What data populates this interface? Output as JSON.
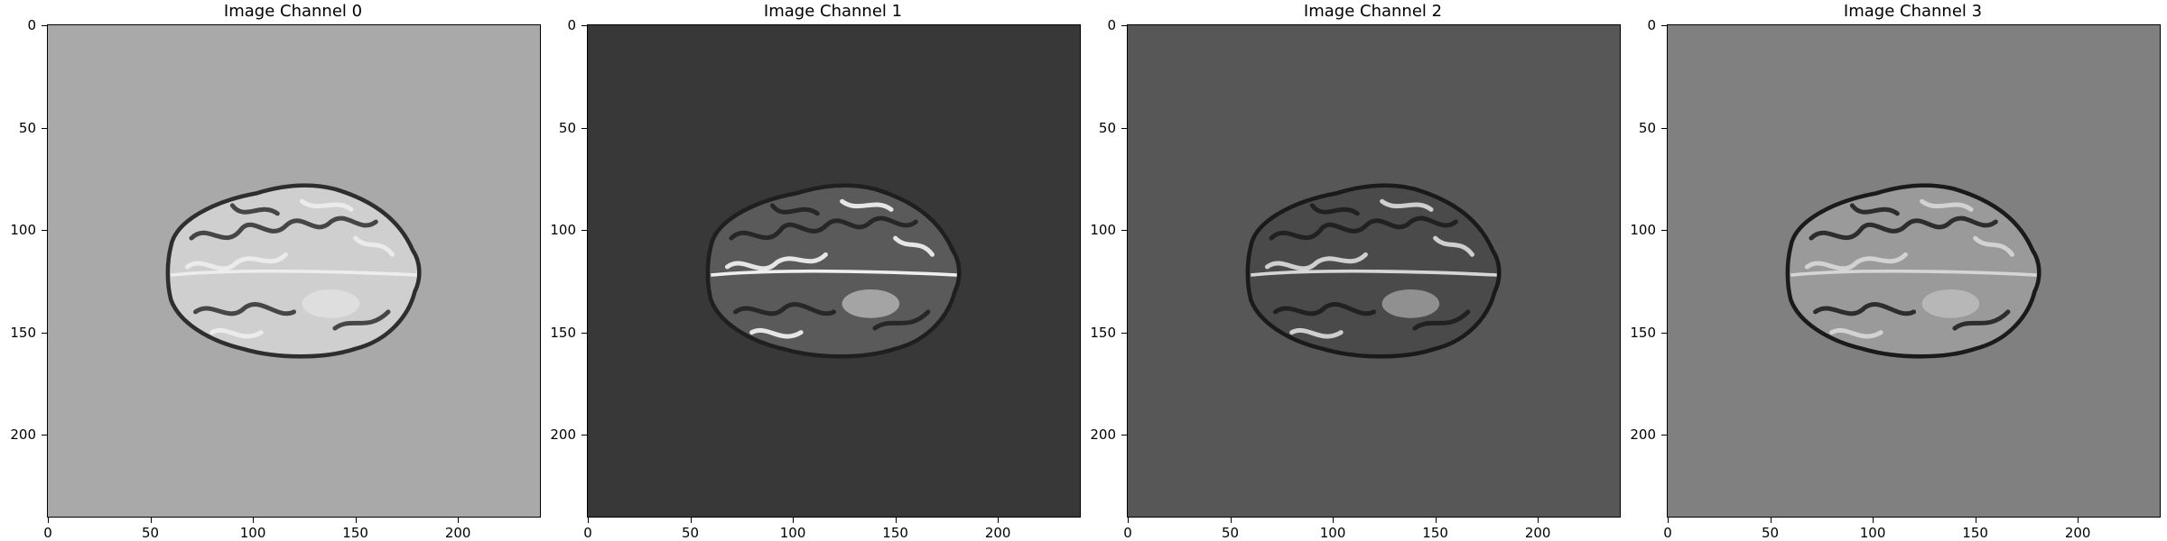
{
  "figure": {
    "colormap": "gray",
    "x_ticks": [
      "0",
      "50",
      "100",
      "150",
      "200"
    ],
    "y_ticks": [
      "0",
      "50",
      "100",
      "150",
      "200"
    ],
    "panels": [
      {
        "title": "Image Channel 0",
        "background_color": "#a9a9a9",
        "brain_color": "#cfcfcf",
        "gyri_color": "#2e2e2e",
        "hyper_color": "#f0f0f0"
      },
      {
        "title": "Image Channel 1",
        "background_color": "#383838",
        "brain_color": "#5a5a5a",
        "gyri_color": "#1f1f1f",
        "hyper_color": "#ffffff"
      },
      {
        "title": "Image Channel 2",
        "background_color": "#575757",
        "brain_color": "#4a4a4a",
        "gyri_color": "#1a1a1a",
        "hyper_color": "#e6e6e6"
      },
      {
        "title": "Image Channel 3",
        "background_color": "#808080",
        "brain_color": "#9a9a9a",
        "gyri_color": "#1a1a1a",
        "hyper_color": "#dcdcdc"
      }
    ]
  }
}
